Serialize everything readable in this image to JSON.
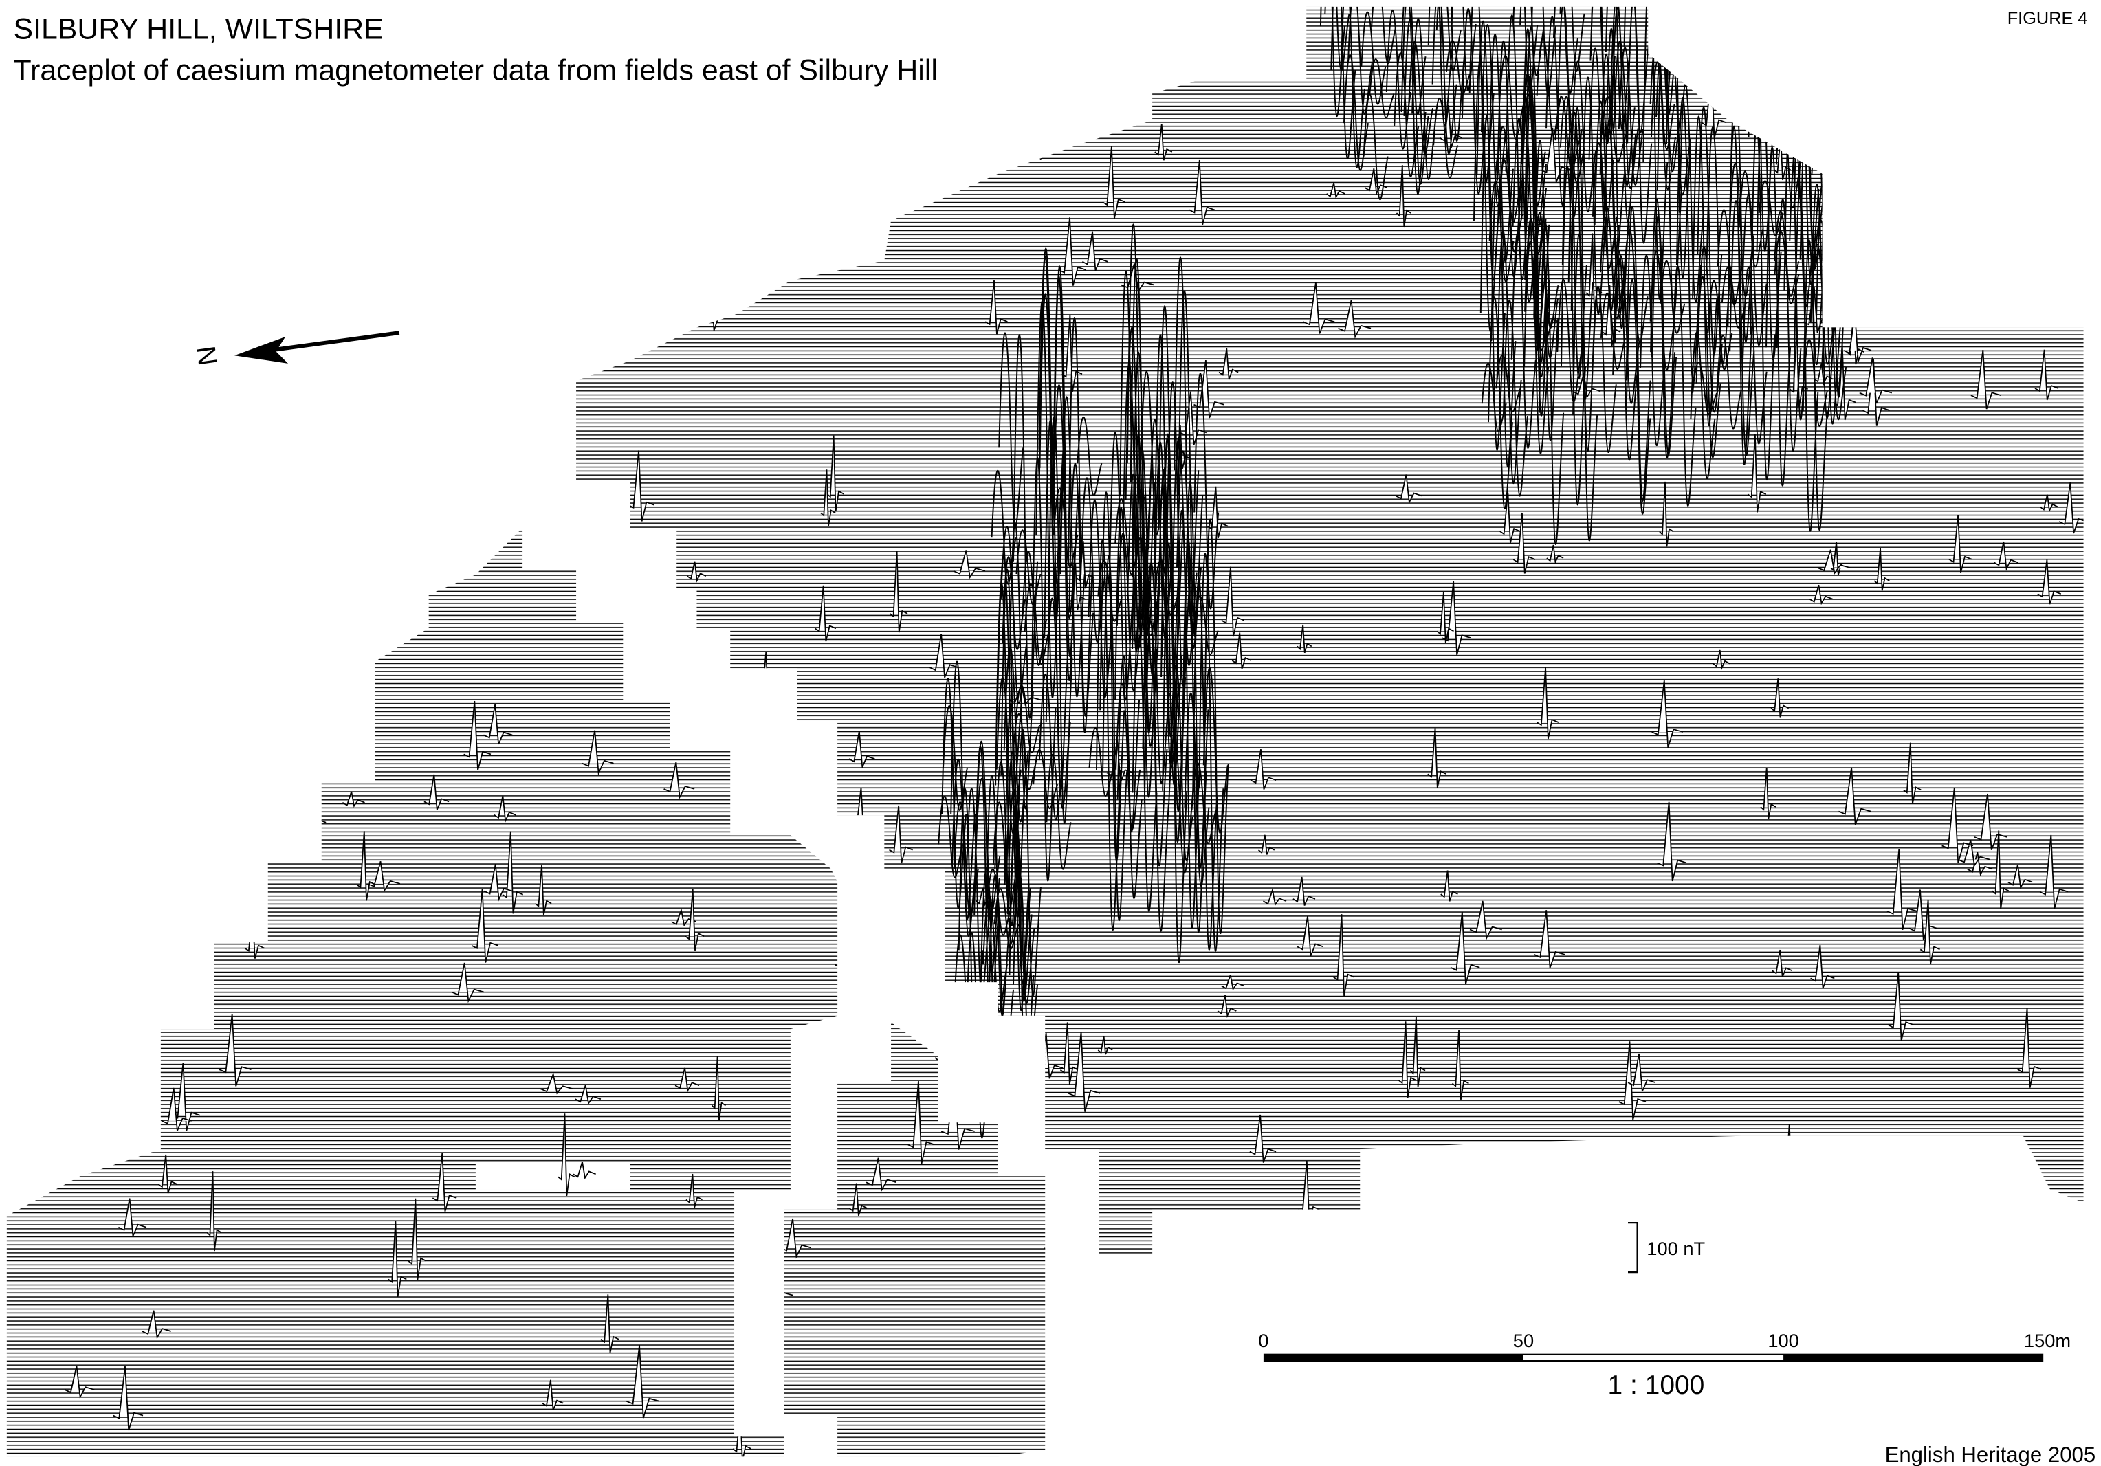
{
  "header": {
    "title": "SILBURY HILL, WILTSHIRE",
    "subtitle": "Traceplot of caesium magnetometer data from fields east of Silbury Hill",
    "figure": "FIGURE 4"
  },
  "north_arrow": {
    "label": "N"
  },
  "vertical_scale": {
    "label": "100 nT"
  },
  "scale_bar": {
    "labels": [
      "0",
      "50",
      "100",
      "150m"
    ],
    "ratio": "1 : 1000"
  },
  "credit": "English Heritage 2005"
}
